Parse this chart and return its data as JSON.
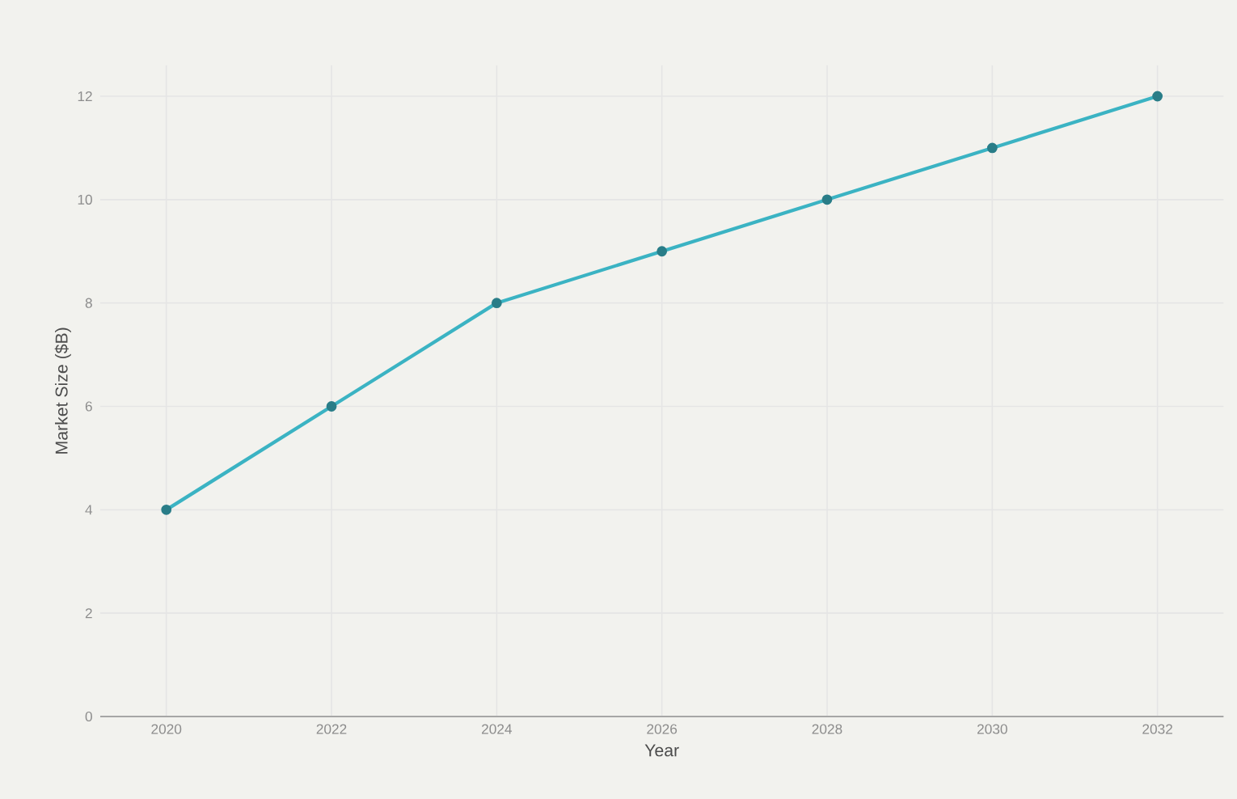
{
  "chart_data": {
    "type": "line",
    "xlabel": "Year",
    "ylabel": "Market Size ($B)",
    "x": [
      2020,
      2022,
      2024,
      2026,
      2028,
      2030,
      2032
    ],
    "series": [
      {
        "color": "#3bb3c3",
        "values": [
          4,
          6,
          8,
          9,
          10,
          11,
          12
        ]
      }
    ],
    "xlim": [
      2019.2,
      2032.8
    ],
    "ylim": [
      0,
      12.6
    ],
    "xticks": [
      2020,
      2022,
      2024,
      2026,
      2028,
      2030,
      2032
    ],
    "yticks": [
      0,
      2,
      4,
      6,
      8,
      10,
      12
    ],
    "grid": true,
    "marker": "circle",
    "line_style": "solid"
  }
}
